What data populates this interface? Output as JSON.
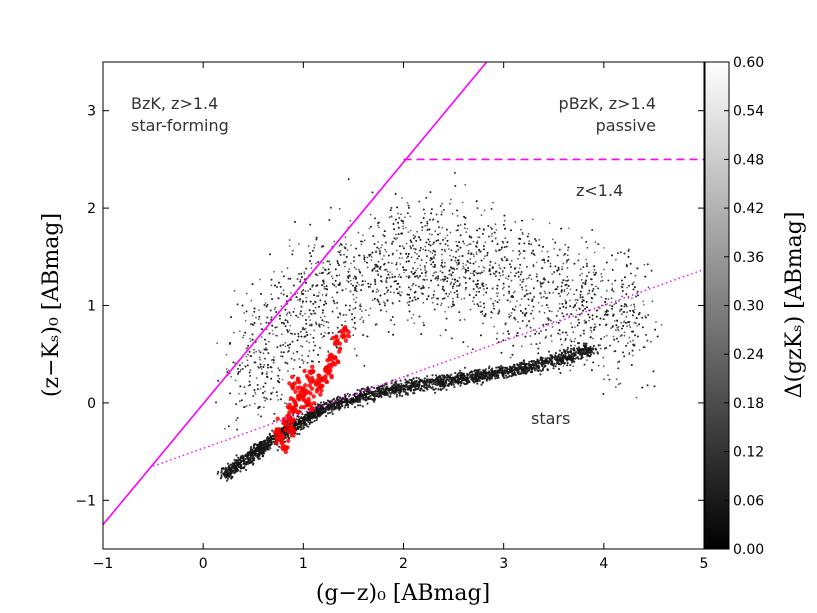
{
  "chart_data": {
    "type": "scatter",
    "xlabel": "(g−z)₀ [ABmag]",
    "ylabel": "(z−Kₛ)₀ [ABmag]",
    "xlim": [
      -1,
      5
    ],
    "ylim": [
      -1.5,
      3.5
    ],
    "x_ticks": [
      "−1",
      "0",
      "1",
      "2",
      "3",
      "4",
      "5"
    ],
    "y_ticks": [
      "−1",
      "0",
      "1",
      "2",
      "3"
    ],
    "colorbar": {
      "label": "Δ(gzKₛ) [ABmag]",
      "range": [
        0.0,
        0.6
      ],
      "ticks": [
        "0.00",
        "0.06",
        "0.12",
        "0.18",
        "0.24",
        "0.30",
        "0.36",
        "0.42",
        "0.48",
        "0.54",
        "0.60"
      ],
      "colormap": "gray: black at 0.00 to white at 0.60"
    },
    "annotations": {
      "sf_line1": "BzK, z>1.4",
      "sf_line2": "star-forming",
      "passive_line1": "pBzK, z>1.4",
      "passive_line2": "passive",
      "lowz": "z<1.4",
      "stars": "stars"
    },
    "lines": [
      {
        "name": "star-forming boundary",
        "style": "solid",
        "color": "#ff00ff",
        "x": [
          -1,
          2.83
        ],
        "y": [
          -1.25,
          3.5
        ]
      },
      {
        "name": "passive boundary",
        "style": "dashed",
        "color": "#ff00ff",
        "x": [
          2.0,
          5.0
        ],
        "y": [
          2.5,
          2.5
        ]
      },
      {
        "name": "stellar locus",
        "style": "dotted",
        "color": "#ff00ff",
        "x": [
          -0.5,
          5.0
        ],
        "y": [
          -0.65,
          1.37
        ]
      }
    ],
    "series": [
      {
        "kind": "galaxies (dense cloud)",
        "color": "#1a1a1a",
        "description_of_distribution": "main galaxy cloud",
        "center_x": [
          0.4,
          0.8,
          1.2,
          1.6,
          2.0,
          2.4,
          2.8,
          3.2,
          3.6,
          4.0,
          4.4
        ],
        "center_y": [
          0.25,
          0.7,
          1.1,
          1.35,
          1.45,
          1.45,
          1.35,
          1.2,
          1.05,
          0.95,
          0.85
        ]
      },
      {
        "kind": "stars",
        "color": "#141414",
        "x": [
          0.2,
          0.4,
          0.6,
          0.8,
          1.0,
          1.2,
          1.5,
          1.8,
          2.1,
          2.4,
          2.7,
          3.0,
          3.3,
          3.6,
          3.9
        ],
        "y": [
          -0.75,
          -0.6,
          -0.45,
          -0.3,
          -0.18,
          -0.05,
          0.05,
          0.12,
          0.18,
          0.22,
          0.27,
          0.32,
          0.38,
          0.46,
          0.56
        ]
      },
      {
        "kind": "highlighted sources",
        "color": "#ff0000",
        "x": [
          0.75,
          0.8,
          0.85,
          0.9,
          0.95,
          1.0,
          1.05,
          1.1,
          1.15,
          1.2,
          0.82,
          0.88,
          0.93,
          1.08,
          1.25,
          1.3,
          1.35,
          1.4
        ],
        "y": [
          -0.35,
          -0.25,
          -0.15,
          -0.05,
          0.05,
          0.1,
          0.0,
          0.15,
          0.2,
          0.25,
          -0.45,
          -0.3,
          0.2,
          0.3,
          0.35,
          0.45,
          0.6,
          0.7
        ]
      }
    ]
  }
}
